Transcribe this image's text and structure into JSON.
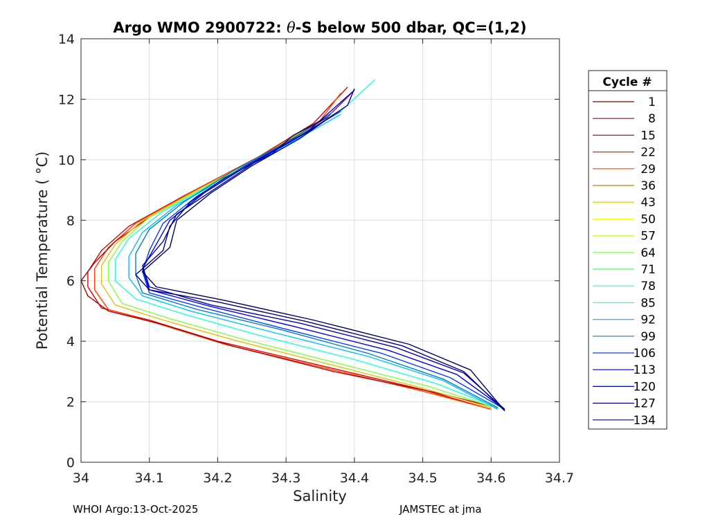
{
  "chart_data": {
    "type": "line",
    "title_prefix": "Argo WMO 2900722: ",
    "title_theta": "θ",
    "title_suffix": "-S below 500 dbar,  QC=(1,2)",
    "xlabel": "Salinity",
    "ylabel": "Potential Temperature ( °C)",
    "xlim": [
      34,
      34.7
    ],
    "ylim": [
      0,
      14
    ],
    "xticks": [
      "34",
      "34.1",
      "34.2",
      "34.3",
      "34.4",
      "34.5",
      "34.6",
      "34.7"
    ],
    "yticks": [
      "0",
      "2",
      "4",
      "6",
      "8",
      "10",
      "12",
      "14"
    ],
    "grid": true,
    "legend": {
      "title": "Cycle #",
      "placement": "outside-right",
      "entries": [
        {
          "label": "1",
          "color": "#800000"
        },
        {
          "label": "8",
          "color": "#b00000"
        },
        {
          "label": "15",
          "color": "#e00000"
        },
        {
          "label": "22",
          "color": "#ff1000"
        },
        {
          "label": "29",
          "color": "#ff4000"
        },
        {
          "label": "36",
          "color": "#c08000"
        },
        {
          "label": "43",
          "color": "#e0c000"
        },
        {
          "label": "50",
          "color": "#ffff00"
        },
        {
          "label": "57",
          "color": "#c0ff40"
        },
        {
          "label": "64",
          "color": "#80ff40"
        },
        {
          "label": "71",
          "color": "#40ff60"
        },
        {
          "label": "78",
          "color": "#20ffa0"
        },
        {
          "label": "85",
          "color": "#20ffe0"
        },
        {
          "label": "92",
          "color": "#00c0ff"
        },
        {
          "label": "99",
          "color": "#0080c0"
        },
        {
          "label": "106",
          "color": "#0040ff"
        },
        {
          "label": "113",
          "color": "#0000e0"
        },
        {
          "label": "120",
          "color": "#0000a0"
        },
        {
          "label": "127",
          "color": "#000080"
        },
        {
          "label": "134",
          "color": "#000060"
        }
      ]
    },
    "series": [
      {
        "color": "#e00000",
        "points": [
          [
            34.6,
            1.75
          ],
          [
            34.5,
            2.4
          ],
          [
            34.35,
            3.2
          ],
          [
            34.2,
            4.0
          ],
          [
            34.1,
            4.7
          ],
          [
            34.03,
            5.1
          ],
          [
            34.01,
            5.8
          ],
          [
            34.01,
            6.3
          ],
          [
            34.03,
            7.0
          ],
          [
            34.07,
            7.8
          ],
          [
            34.15,
            8.8
          ],
          [
            34.26,
            10.1
          ],
          [
            34.34,
            11.2
          ],
          [
            34.39,
            12.4
          ]
        ]
      },
      {
        "color": "#ff4000",
        "points": [
          [
            34.6,
            1.75
          ],
          [
            34.5,
            2.35
          ],
          [
            34.36,
            3.1
          ],
          [
            34.21,
            3.9
          ],
          [
            34.11,
            4.6
          ],
          [
            34.04,
            5.05
          ],
          [
            34.02,
            5.7
          ],
          [
            34.02,
            6.4
          ],
          [
            34.04,
            7.1
          ],
          [
            34.08,
            7.9
          ],
          [
            34.16,
            8.9
          ],
          [
            34.27,
            10.2
          ],
          [
            34.35,
            11.3
          ],
          [
            34.38,
            12.2
          ]
        ]
      },
      {
        "color": "#b00000",
        "points": [
          [
            34.61,
            1.8
          ],
          [
            34.52,
            2.3
          ],
          [
            34.37,
            3.0
          ],
          [
            34.22,
            3.85
          ],
          [
            34.12,
            4.55
          ],
          [
            34.04,
            5.0
          ],
          [
            34.01,
            5.5
          ],
          [
            34.0,
            6.0
          ],
          [
            34.02,
            6.6
          ],
          [
            34.05,
            7.3
          ],
          [
            34.1,
            8.1
          ],
          [
            34.18,
            9.1
          ],
          [
            34.28,
            10.3
          ],
          [
            34.36,
            11.4
          ],
          [
            34.4,
            12.3
          ]
        ]
      },
      {
        "color": "#e0c000",
        "points": [
          [
            34.6,
            1.8
          ],
          [
            34.5,
            2.45
          ],
          [
            34.37,
            3.2
          ],
          [
            34.23,
            4.0
          ],
          [
            34.12,
            4.7
          ],
          [
            34.05,
            5.2
          ],
          [
            34.03,
            5.9
          ],
          [
            34.03,
            6.5
          ],
          [
            34.05,
            7.2
          ],
          [
            34.09,
            8.0
          ],
          [
            34.17,
            9.0
          ],
          [
            34.27,
            10.2
          ],
          [
            34.35,
            11.3
          ]
        ]
      },
      {
        "color": "#80ff40",
        "points": [
          [
            34.6,
            1.85
          ],
          [
            34.51,
            2.5
          ],
          [
            34.38,
            3.25
          ],
          [
            34.24,
            4.05
          ],
          [
            34.13,
            4.75
          ],
          [
            34.06,
            5.25
          ],
          [
            34.04,
            6.0
          ],
          [
            34.04,
            6.6
          ],
          [
            34.06,
            7.3
          ],
          [
            34.1,
            8.1
          ],
          [
            34.18,
            9.1
          ],
          [
            34.28,
            10.3
          ],
          [
            34.35,
            11.2
          ]
        ]
      },
      {
        "color": "#20ffe0",
        "points": [
          [
            34.61,
            1.8
          ],
          [
            34.52,
            2.6
          ],
          [
            34.4,
            3.4
          ],
          [
            34.26,
            4.2
          ],
          [
            34.15,
            4.9
          ],
          [
            34.08,
            5.4
          ],
          [
            34.05,
            6.0
          ],
          [
            34.05,
            6.7
          ],
          [
            34.07,
            7.4
          ],
          [
            34.12,
            8.3
          ],
          [
            34.2,
            9.3
          ],
          [
            34.3,
            10.5
          ],
          [
            34.38,
            11.6
          ],
          [
            34.43,
            12.65
          ]
        ]
      },
      {
        "color": "#00c0ff",
        "points": [
          [
            34.61,
            1.75
          ],
          [
            34.53,
            2.7
          ],
          [
            34.42,
            3.5
          ],
          [
            34.28,
            4.3
          ],
          [
            34.16,
            5.0
          ],
          [
            34.09,
            5.5
          ],
          [
            34.07,
            6.1
          ],
          [
            34.07,
            6.8
          ],
          [
            34.09,
            7.6
          ],
          [
            34.14,
            8.5
          ],
          [
            34.22,
            9.5
          ],
          [
            34.31,
            10.6
          ],
          [
            34.38,
            11.5
          ]
        ]
      },
      {
        "color": "#0080c0",
        "points": [
          [
            34.61,
            1.8
          ],
          [
            34.53,
            2.75
          ],
          [
            34.42,
            3.6
          ],
          [
            34.29,
            4.4
          ],
          [
            34.17,
            5.05
          ],
          [
            34.09,
            5.6
          ],
          [
            34.08,
            6.2
          ],
          [
            34.08,
            6.9
          ],
          [
            34.1,
            7.7
          ],
          [
            34.15,
            8.6
          ],
          [
            34.22,
            9.6
          ],
          [
            34.31,
            10.7
          ],
          [
            34.37,
            11.6
          ]
        ]
      },
      {
        "color": "#0040ff",
        "points": [
          [
            34.62,
            1.75
          ],
          [
            34.54,
            2.8
          ],
          [
            34.44,
            3.6
          ],
          [
            34.3,
            4.4
          ],
          [
            34.18,
            5.1
          ],
          [
            34.1,
            5.6
          ],
          [
            34.09,
            6.3
          ],
          [
            34.1,
            7.0
          ],
          [
            34.12,
            7.9
          ],
          [
            34.17,
            8.8
          ],
          [
            34.24,
            9.8
          ],
          [
            34.32,
            10.8
          ],
          [
            34.38,
            11.6
          ]
        ]
      },
      {
        "color": "#0000e0",
        "points": [
          [
            34.62,
            1.75
          ],
          [
            34.55,
            2.9
          ],
          [
            34.45,
            3.7
          ],
          [
            34.31,
            4.5
          ],
          [
            34.19,
            5.15
          ],
          [
            34.1,
            5.7
          ],
          [
            34.09,
            6.4
          ],
          [
            34.11,
            7.2
          ],
          [
            34.13,
            8.0
          ],
          [
            34.18,
            8.9
          ],
          [
            34.25,
            9.9
          ],
          [
            34.33,
            10.9
          ],
          [
            34.4,
            12.3
          ]
        ]
      },
      {
        "color": "#0000a0",
        "points": [
          [
            34.62,
            1.75
          ],
          [
            34.56,
            2.95
          ],
          [
            34.46,
            3.8
          ],
          [
            34.32,
            4.6
          ],
          [
            34.19,
            5.2
          ],
          [
            34.1,
            5.8
          ],
          [
            34.09,
            6.5
          ],
          [
            34.12,
            7.3
          ],
          [
            34.14,
            8.2
          ],
          [
            34.2,
            9.1
          ],
          [
            34.26,
            10.0
          ],
          [
            34.33,
            10.9
          ],
          [
            34.39,
            11.8
          ],
          [
            34.4,
            12.35
          ]
        ]
      },
      {
        "color": "#000080",
        "points": [
          [
            34.62,
            1.7
          ],
          [
            34.56,
            3.0
          ],
          [
            34.47,
            3.85
          ],
          [
            34.33,
            4.65
          ],
          [
            34.2,
            5.3
          ],
          [
            34.1,
            5.7
          ],
          [
            34.08,
            6.2
          ],
          [
            34.12,
            7.0
          ],
          [
            34.13,
            7.8
          ],
          [
            34.16,
            8.6
          ],
          [
            34.21,
            9.4
          ],
          [
            34.28,
            10.2
          ],
          [
            34.31,
            10.8
          ],
          [
            34.36,
            11.4
          ]
        ]
      },
      {
        "color": "#000060",
        "points": [
          [
            34.62,
            1.7
          ],
          [
            34.57,
            3.05
          ],
          [
            34.48,
            3.9
          ],
          [
            34.34,
            4.7
          ],
          [
            34.21,
            5.35
          ],
          [
            34.11,
            5.8
          ],
          [
            34.09,
            6.3
          ],
          [
            34.13,
            7.1
          ],
          [
            34.14,
            8.0
          ],
          [
            34.19,
            8.9
          ],
          [
            34.25,
            9.8
          ],
          [
            34.32,
            10.7
          ],
          [
            34.37,
            11.5
          ]
        ]
      }
    ]
  },
  "footer": {
    "left": "WHOI Argo:13-Oct-2025",
    "right": "JAMSTEC at jma"
  }
}
